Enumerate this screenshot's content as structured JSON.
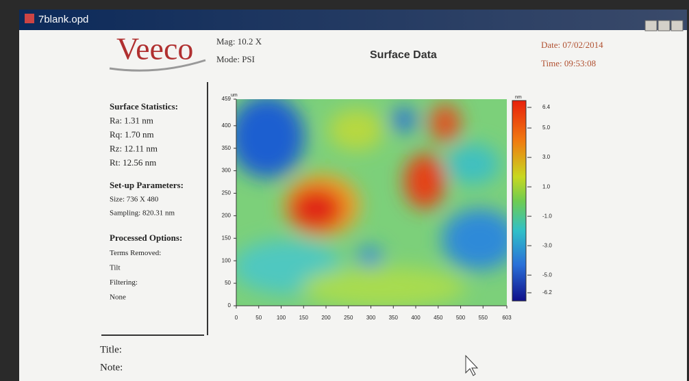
{
  "window": {
    "title": "7blank.opd"
  },
  "header": {
    "logo": "Veeco",
    "mag": "Mag: 10.2 X",
    "mode": "Mode: PSI",
    "title": "Surface Data",
    "date": "Date: 07/02/2014",
    "time": "Time: 09:53:08"
  },
  "stats": {
    "heading": "Surface Statistics:",
    "items": [
      "Ra: 1.31 nm",
      "Rq: 1.70 nm",
      "Rz: 12.11 nm",
      "Rt: 12.56 nm"
    ]
  },
  "setup": {
    "heading": "Set-up Parameters:",
    "items": [
      "Size: 736 X 480",
      "Sampling: 820.31 nm"
    ]
  },
  "processed": {
    "heading": "Processed Options:",
    "items": [
      "Terms Removed:",
      "Tilt",
      "Filtering:",
      "None"
    ]
  },
  "plot": {
    "y_unit": "um",
    "xlim": [
      0,
      603
    ],
    "xticks": [
      0,
      50,
      100,
      150,
      200,
      250,
      300,
      350,
      400,
      450,
      500,
      550,
      603
    ],
    "ylim": [
      0,
      459
    ],
    "yticks": [
      0,
      50,
      100,
      150,
      200,
      250,
      300,
      350,
      400,
      459
    ],
    "colorbar": {
      "unit": "nm",
      "lim": [
        -6.2,
        6.4
      ],
      "ticks": [
        6.4,
        {
          "value": 5,
          "label": "5.0"
        },
        {
          "value": 3,
          "label": "3.0"
        },
        {
          "value": 1,
          "label": "1.0"
        },
        {
          "value": -1,
          "label": "-1.0"
        },
        {
          "value": -3,
          "label": "-3.0"
        },
        {
          "value": -5,
          "label": "-5.0"
        },
        -6.2
      ]
    }
  },
  "footer": {
    "title": "Title:",
    "note": "Note:"
  }
}
